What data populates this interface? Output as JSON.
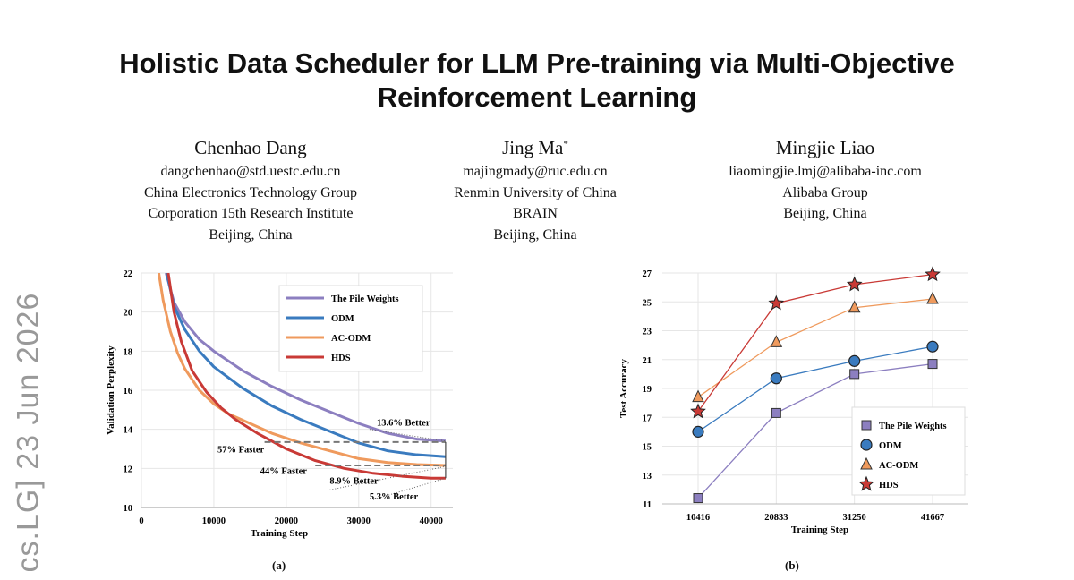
{
  "paper": {
    "title_line1": "Holistic Data Scheduler for LLM Pre-training via Multi-Objective",
    "title_line2": "Reinforcement Learning",
    "arxiv_stamp": "cs.LG]  23 Jun 2026",
    "authors": [
      {
        "name": "Chenhao Dang",
        "mark": "",
        "email": "dangchenhao@std.uestc.edu.cn",
        "affiliation": [
          "China Electronics Technology Group",
          "Corporation 15th Research Institute",
          "Beijing, China"
        ]
      },
      {
        "name": "Jing Ma",
        "mark": "*",
        "email": "majingmady@ruc.edu.cn",
        "affiliation": [
          "Renmin University of China",
          "BRAIN",
          "Beijing, China"
        ]
      },
      {
        "name": "Mingjie Liao",
        "mark": "",
        "email": "liaomingjie.lmj@alibaba-inc.com",
        "affiliation": [
          "Alibaba Group",
          "Beijing, China",
          ""
        ]
      }
    ]
  },
  "chart_data": [
    {
      "type": "line",
      "panel_label": "(a)",
      "xlabel": "Training Step",
      "ylabel": "Validation Perplexity",
      "xlim": [
        0,
        43000
      ],
      "ylim": [
        10,
        22
      ],
      "xticks": [
        0,
        10000,
        20000,
        30000,
        40000
      ],
      "yticks": [
        10,
        12,
        14,
        16,
        18,
        20,
        22
      ],
      "legend_position": "top-right",
      "series": [
        {
          "name": "The Pile Weights",
          "color": "#8c7fc0",
          "x": [
            3400,
            4500,
            6000,
            8000,
            10000,
            14000,
            18000,
            22000,
            26000,
            30000,
            34000,
            38000,
            42000
          ],
          "y": [
            22,
            20.5,
            19.5,
            18.6,
            18.0,
            17.0,
            16.2,
            15.5,
            14.9,
            14.3,
            13.8,
            13.5,
            13.4
          ]
        },
        {
          "name": "ODM",
          "color": "#3a7bbf",
          "x": [
            3500,
            4500,
            6000,
            8000,
            10000,
            14000,
            18000,
            22000,
            26000,
            30000,
            34000,
            38000,
            42000
          ],
          "y": [
            22,
            20.3,
            19.1,
            18.0,
            17.2,
            16.1,
            15.2,
            14.5,
            13.9,
            13.3,
            12.9,
            12.7,
            12.6
          ]
        },
        {
          "name": "AC-ODM",
          "color": "#ef9a5d",
          "x": [
            2400,
            3000,
            4000,
            5000,
            6000,
            8000,
            10000,
            12000,
            15000,
            18000,
            22000,
            26000,
            30000,
            34000,
            38000,
            42000
          ],
          "y": [
            22,
            20.6,
            19.0,
            17.9,
            17.1,
            16.0,
            15.3,
            14.8,
            14.3,
            13.8,
            13.3,
            12.9,
            12.5,
            12.3,
            12.2,
            12.15
          ]
        },
        {
          "name": "HDS",
          "color": "#c93a36",
          "x": [
            3700,
            4500,
            5500,
            7000,
            9000,
            11000,
            13000,
            16000,
            20000,
            24000,
            28000,
            32000,
            36000,
            40000,
            42000
          ],
          "y": [
            22,
            20.0,
            18.5,
            17.0,
            15.9,
            15.1,
            14.5,
            13.8,
            13.0,
            12.4,
            12.0,
            11.75,
            11.6,
            11.5,
            11.5
          ]
        }
      ],
      "annotations": [
        {
          "text": "13.6% Better"
        },
        {
          "text": "57% Faster"
        },
        {
          "text": "44% Faster"
        },
        {
          "text": "8.9% Better"
        },
        {
          "text": "5.3% Better"
        }
      ]
    },
    {
      "type": "line",
      "panel_label": "(b)",
      "xlabel": "Training Step",
      "ylabel": "Test Accuracy",
      "categories": [
        "10416",
        "20833",
        "31250",
        "41667"
      ],
      "ylim": [
        11,
        27
      ],
      "yticks": [
        11,
        13,
        15,
        17,
        19,
        21,
        23,
        25,
        27
      ],
      "legend_position": "bottom-right",
      "series": [
        {
          "name": "The Pile Weights",
          "color": "#8c7fc0",
          "marker": "square",
          "values": [
            11.4,
            17.3,
            20.0,
            20.7
          ]
        },
        {
          "name": "ODM",
          "color": "#3a7bbf",
          "marker": "circle",
          "values": [
            16.0,
            19.7,
            20.9,
            21.9
          ]
        },
        {
          "name": "AC-ODM",
          "color": "#ef9a5d",
          "marker": "triangle",
          "values": [
            18.4,
            22.2,
            24.6,
            25.2
          ]
        },
        {
          "name": "HDS",
          "color": "#c93a36",
          "marker": "star",
          "values": [
            17.4,
            24.9,
            26.2,
            26.9
          ]
        }
      ]
    }
  ]
}
